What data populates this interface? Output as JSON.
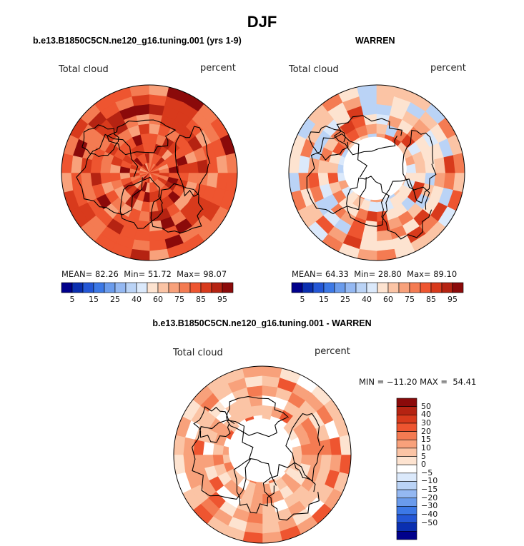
{
  "page_title": "DJF",
  "colors": {
    "land_outline": "#000000",
    "missing": "#ffffff"
  },
  "panels": [
    {
      "id": "model",
      "title": "b.e13.B1850C5CN.ne120_g16.tuning.001 (yrs 1-9)",
      "field_label": "Total cloud",
      "units": "percent",
      "stats": {
        "mean_label": "MEAN=",
        "mean": "82.26",
        "min_label": "Min=",
        "min": "51.72",
        "max_label": "Max=",
        "max": "98.07"
      },
      "colorbar": {
        "ticks": [
          "5",
          "15",
          "25",
          "40",
          "60",
          "75",
          "85",
          "95"
        ],
        "colors": [
          "#00008b",
          "#0a2fb0",
          "#2457d6",
          "#3c78e6",
          "#6a9bec",
          "#94b8f2",
          "#bad3f6",
          "#dbe9fb",
          "#fde3d0",
          "#fbc4a5",
          "#f8a17b",
          "#f47b52",
          "#ee5530",
          "#d83a1c",
          "#b52312",
          "#8b0a0a"
        ]
      },
      "palette_indices": [
        10,
        11,
        11,
        12,
        12,
        12,
        13,
        13,
        14,
        15
      ]
    },
    {
      "id": "obs",
      "title": "WARREN",
      "field_label": "Total cloud",
      "units": "percent",
      "stats": {
        "mean_label": "MEAN=",
        "mean": "64.33",
        "min_label": "Min=",
        "min": "28.80",
        "max_label": "Max=",
        "max": "89.10"
      },
      "colorbar": {
        "ticks": [
          "5",
          "15",
          "25",
          "40",
          "60",
          "75",
          "85",
          "95"
        ],
        "colors": [
          "#00008b",
          "#0a2fb0",
          "#2457d6",
          "#3c78e6",
          "#6a9bec",
          "#94b8f2",
          "#bad3f6",
          "#dbe9fb",
          "#fde3d0",
          "#fbc4a5",
          "#f8a17b",
          "#f47b52",
          "#ee5530",
          "#d83a1c",
          "#b52312",
          "#8b0a0a"
        ]
      },
      "palette_indices": [
        6,
        7,
        8,
        8,
        9,
        9,
        10,
        11,
        12,
        13
      ]
    },
    {
      "id": "diff",
      "title": "b.e13.B1850C5CN.ne120_g16.tuning.001 - WARREN",
      "field_label": "Total cloud",
      "units": "percent",
      "minmax_text": "MIN = −11.20 MAX =  54.41",
      "colorbar": {
        "ticks": [
          "50",
          "40",
          "30",
          "20",
          "15",
          "10",
          "5",
          "0",
          "−5",
          "−10",
          "−15",
          "−20",
          "−30",
          "−40",
          "−50"
        ],
        "colors": [
          "#8b0a0a",
          "#b52312",
          "#d83a1c",
          "#ee5530",
          "#f47b52",
          "#f8a17b",
          "#fbc4a5",
          "#fde3d0",
          "#ffffff",
          "#dbe9fb",
          "#bad3f6",
          "#94b8f2",
          "#6a9bec",
          "#3c78e6",
          "#2457d6",
          "#0a2fb0",
          "#00008b"
        ]
      },
      "palette_indices": [
        5,
        6,
        6,
        7,
        7,
        4,
        3,
        8,
        5,
        6
      ]
    }
  ]
}
